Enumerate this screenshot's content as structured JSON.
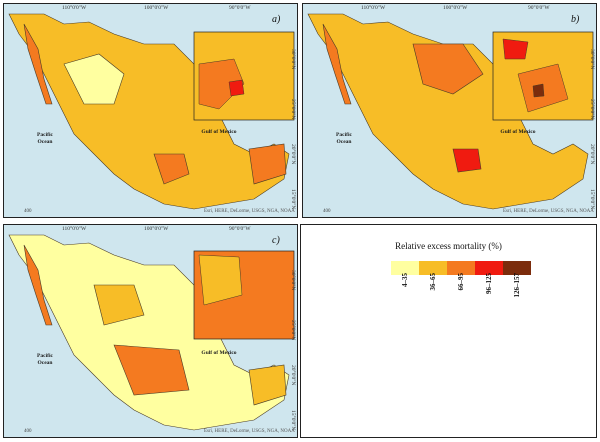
{
  "panels": [
    {
      "label": "a)",
      "top_ticks": [
        "110°0'0\"W",
        "100°0'0\"W",
        "90°0'0\"W"
      ],
      "side_ticks": [
        "30°0'0\"N",
        "25°0'0\"N",
        "20°0'0\"N",
        "15°0'0\"N"
      ],
      "credit": "Esri, HERE, DeLorme, USGS, NGA, NOAA",
      "scale": "400"
    },
    {
      "label": "b)",
      "top_ticks": [
        "110°0'0\"W",
        "100°0'0\"W",
        "90°0'0\"W"
      ],
      "side_ticks": [
        "30°0'0\"N",
        "25°0'0\"N",
        "20°0'0\"N",
        "15°0'0\"N"
      ],
      "credit": "Esri, HERE, DeLorme, USGS, NGA, NOAA",
      "scale": "400"
    },
    {
      "label": "c)",
      "top_ticks": [
        "110°0'0\"W",
        "100°0'0\"W",
        "90°0'0\"W"
      ],
      "side_ticks": [
        "30°0'0\"N",
        "25°0'0\"N",
        "20°0'0\"N",
        "15°0'0\"N"
      ],
      "credit": "Esri, HERE, DeLorme, USGS, NGA, NOAA",
      "scale": "400"
    }
  ],
  "water_labels": {
    "pacific": "Pacific Ocean",
    "gulf": "Gulf of Mexico"
  },
  "legend": {
    "title": "Relative excess mortality (%)",
    "classes": [
      {
        "label": "4–35",
        "color": "#ffffa0"
      },
      {
        "label": "36–65",
        "color": "#f7bd27"
      },
      {
        "label": "66–95",
        "color": "#f47a20"
      },
      {
        "label": "96–125",
        "color": "#f01b10"
      },
      {
        "label": "126–157",
        "color": "#7b2c0c"
      }
    ]
  }
}
